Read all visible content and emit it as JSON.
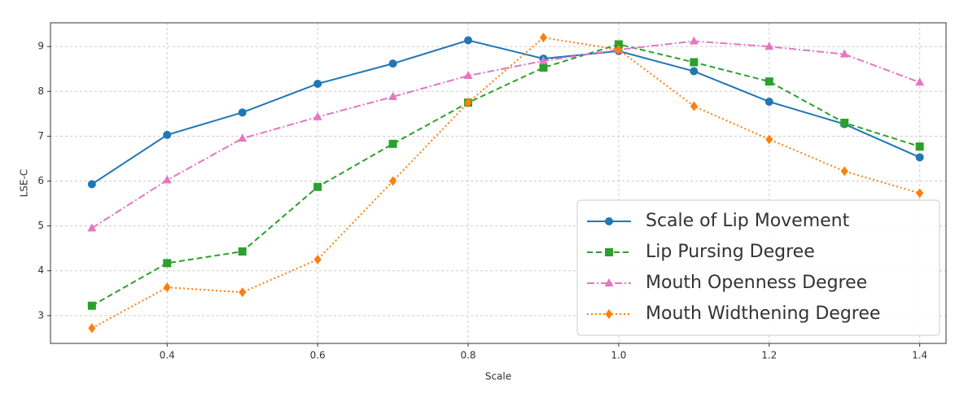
{
  "chart_data": {
    "type": "line",
    "xlabel": "Scale",
    "ylabel": "LSE-C",
    "x": [
      0.3,
      0.4,
      0.5,
      0.6,
      0.7,
      0.8,
      0.9,
      1.0,
      1.1,
      1.2,
      1.3,
      1.4
    ],
    "series": [
      {
        "name": "Scale of Lip Movement",
        "color": "#1f77b4",
        "dash": "solid",
        "marker": "circle",
        "values": [
          5.93,
          7.03,
          7.53,
          8.17,
          8.62,
          9.14,
          8.73,
          8.9,
          8.45,
          7.77,
          7.27,
          6.53
        ]
      },
      {
        "name": "Lip Pursing Degree",
        "color": "#2ca02c",
        "dash": "dashed",
        "marker": "square",
        "values": [
          3.22,
          4.17,
          4.43,
          5.87,
          6.83,
          7.75,
          8.53,
          9.05,
          8.65,
          8.22,
          7.3,
          6.77
        ]
      },
      {
        "name": "Mouth Openness Degree",
        "color": "#e377c2",
        "dash": "dashdot",
        "marker": "triangle",
        "values": [
          4.95,
          6.02,
          6.95,
          7.43,
          7.88,
          8.35,
          8.68,
          8.93,
          9.12,
          9.0,
          8.83,
          8.2
        ]
      },
      {
        "name": "Mouth Widthening Degree",
        "color": "#ff7f0e",
        "dash": "dotted",
        "marker": "diamond",
        "values": [
          2.72,
          3.63,
          3.52,
          4.25,
          6.0,
          7.75,
          9.2,
          8.93,
          7.67,
          6.93,
          6.22,
          5.73
        ]
      }
    ],
    "xlim": [
      0.245,
      1.435
    ],
    "xticks": [
      0.4,
      0.6,
      0.8,
      {
        "value": 1,
        "label": "1.0"
      },
      1.2,
      1.4
    ],
    "ylim": [
      2.38,
      9.53
    ],
    "yticks": [
      3,
      4,
      5,
      6,
      7,
      8,
      9
    ],
    "grid": true,
    "legend": "lower right"
  }
}
